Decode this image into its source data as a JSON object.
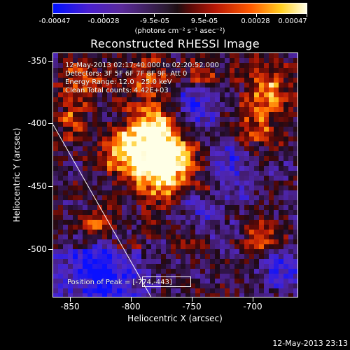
{
  "colorbar": {
    "tick_labels": [
      "-0.00047",
      "-0.00028",
      "-9.5e-05",
      "9.5e-05",
      "0.00028",
      "0.00047"
    ],
    "units": "(photons cm⁻² s⁻¹ asec⁻²)",
    "colormap": "blue-purple-black-red-orange-yellow-white"
  },
  "title": "Reconstructed RHESSI Image",
  "info": {
    "time_range": "12-May-2013 02:17:40.000 to 02:20:52.000",
    "detectors": "Detectors: 3F 5F 6F 7F 8F 9F, Att 0",
    "energy": "Energy Range: 12.0 - 25.0 keV",
    "clean": "Clean    Total counts: 4.42E+03",
    "peak": "Position of Peak = [-774,-443]"
  },
  "axes": {
    "xlabel": "Heliocentric X (arcsec)",
    "ylabel": "Heliocentric Y (arcsec)",
    "xticks": [
      "-850",
      "-800",
      "-750",
      "-700"
    ],
    "yticks": [
      "-350",
      "-400",
      "-450",
      "-500"
    ]
  },
  "footer": {
    "timestamp": "12-May-2013 23:13"
  },
  "chart_data": {
    "type": "heatmap",
    "title": "Reconstructed RHESSI Image",
    "xlabel": "Heliocentric X (arcsec)",
    "ylabel": "Heliocentric Y (arcsec)",
    "xlim": [
      -862,
      -672
    ],
    "ylim": [
      -537,
      -343
    ],
    "zlim": [
      -0.00047,
      0.00047
    ],
    "peak": [
      -774,
      -443
    ],
    "limb_line": {
      "x": [
        -862,
        -786
      ],
      "y": [
        -400,
        -537
      ]
    }
  }
}
